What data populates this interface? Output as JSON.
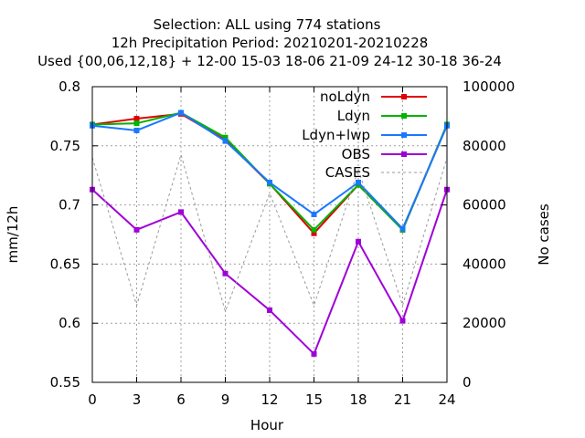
{
  "chart_data": {
    "type": "line",
    "title_lines": [
      "Selection: ALL using   774 stations",
      "12h Precipitation    Period: 20210201-20210228",
      "Used {00,06,12,18} + 12-00 15-03 18-06 21-09 24-12 30-18 36-24"
    ],
    "xlabel": "Hour",
    "ylabel": "mm/12h",
    "y2label": "No cases",
    "x": [
      0,
      3,
      6,
      9,
      12,
      15,
      18,
      21,
      24
    ],
    "xticks": [
      "0",
      "3",
      "6",
      "9",
      "12",
      "15",
      "18",
      "21",
      "24"
    ],
    "xlim": [
      0,
      24
    ],
    "ylim": [
      0.55,
      0.8
    ],
    "yticks": [
      "0.55",
      "0.6",
      "0.65",
      "0.7",
      "0.75",
      "0.8"
    ],
    "y2lim": [
      0,
      100000
    ],
    "y2ticks": [
      "0",
      "20000",
      "40000",
      "60000",
      "80000",
      "100000"
    ],
    "grid": true,
    "legend_position": "top-right",
    "series": [
      {
        "name": "noLdyn",
        "color": "#e00000",
        "marker": "square",
        "axis": "y",
        "values": [
          0.768,
          0.773,
          0.777,
          0.755,
          0.718,
          0.676,
          0.717,
          0.679,
          0.768
        ]
      },
      {
        "name": "Ldyn",
        "color": "#00b400",
        "marker": "square",
        "axis": "y",
        "values": [
          0.768,
          0.769,
          0.778,
          0.757,
          0.718,
          0.679,
          0.717,
          0.679,
          0.768
        ]
      },
      {
        "name": "Ldyn+lwp",
        "color": "#1a78ff",
        "marker": "square",
        "axis": "y",
        "values": [
          0.767,
          0.763,
          0.778,
          0.754,
          0.719,
          0.692,
          0.719,
          0.68,
          0.767
        ]
      },
      {
        "name": "OBS",
        "color": "#a000d8",
        "marker": "square",
        "axis": "y",
        "values": [
          0.713,
          0.679,
          0.694,
          0.642,
          0.611,
          0.574,
          0.669,
          0.602,
          0.713
        ]
      },
      {
        "name": "CASES",
        "color": "#999999",
        "dashed": true,
        "marker": "none",
        "axis": "y2",
        "values": [
          76000,
          26000,
          77000,
          24000,
          64000,
          26000,
          72000,
          26000,
          76000
        ]
      }
    ]
  }
}
